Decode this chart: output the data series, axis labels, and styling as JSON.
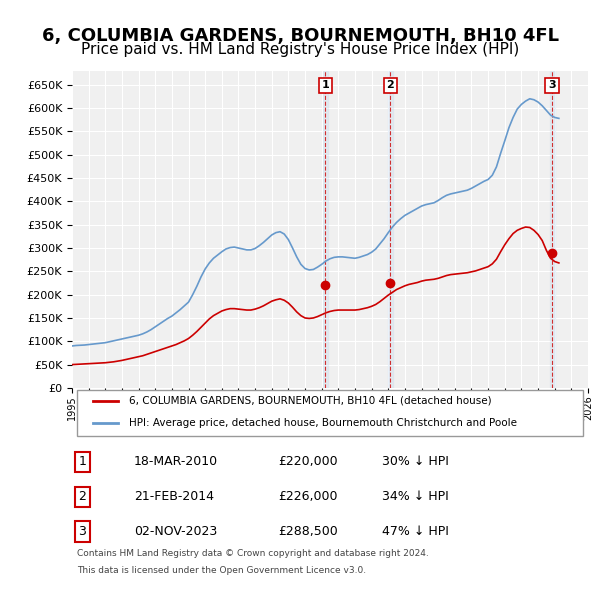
{
  "title": "6, COLUMBIA GARDENS, BOURNEMOUTH, BH10 4FL",
  "subtitle": "Price paid vs. HM Land Registry's House Price Index (HPI)",
  "title_fontsize": 13,
  "subtitle_fontsize": 11,
  "ylabel": "",
  "ylim": [
    0,
    680000
  ],
  "yticks": [
    0,
    50000,
    100000,
    150000,
    200000,
    250000,
    300000,
    350000,
    400000,
    450000,
    500000,
    550000,
    600000,
    650000
  ],
  "xlim_start": 1995,
  "xlim_end": 2026,
  "background_color": "#ffffff",
  "plot_bg_color": "#f0f0f0",
  "grid_color": "#ffffff",
  "hpi_color": "#6699cc",
  "price_color": "#cc0000",
  "legend_hpi_label": "HPI: Average price, detached house, Bournemouth Christchurch and Poole",
  "legend_price_label": "6, COLUMBIA GARDENS, BOURNEMOUTH, BH10 4FL (detached house)",
  "sale_dates": [
    2010.21,
    2014.13,
    2023.84
  ],
  "sale_prices": [
    220000,
    226000,
    288500
  ],
  "sale_labels": [
    "1",
    "2",
    "3"
  ],
  "sale_pct_below": [
    "30%",
    "34%",
    "47%"
  ],
  "sale_display_dates": [
    "18-MAR-2010",
    "21-FEB-2014",
    "02-NOV-2023"
  ],
  "sale_display_prices": [
    "£220,000",
    "£226,000",
    "£288,500"
  ],
  "footer_line1": "Contains HM Land Registry data © Crown copyright and database right 2024.",
  "footer_line2": "This data is licensed under the Open Government Licence v3.0.",
  "hpi_x": [
    1995,
    1995.25,
    1995.5,
    1995.75,
    1996,
    1996.25,
    1996.5,
    1996.75,
    1997,
    1997.25,
    1997.5,
    1997.75,
    1998,
    1998.25,
    1998.5,
    1998.75,
    1999,
    1999.25,
    1999.5,
    1999.75,
    2000,
    2000.25,
    2000.5,
    2000.75,
    2001,
    2001.25,
    2001.5,
    2001.75,
    2002,
    2002.25,
    2002.5,
    2002.75,
    2003,
    2003.25,
    2003.5,
    2003.75,
    2004,
    2004.25,
    2004.5,
    2004.75,
    2005,
    2005.25,
    2005.5,
    2005.75,
    2006,
    2006.25,
    2006.5,
    2006.75,
    2007,
    2007.25,
    2007.5,
    2007.75,
    2008,
    2008.25,
    2008.5,
    2008.75,
    2009,
    2009.25,
    2009.5,
    2009.75,
    2010,
    2010.25,
    2010.5,
    2010.75,
    2011,
    2011.25,
    2011.5,
    2011.75,
    2012,
    2012.25,
    2012.5,
    2012.75,
    2013,
    2013.25,
    2013.5,
    2013.75,
    2014,
    2014.25,
    2014.5,
    2014.75,
    2015,
    2015.25,
    2015.5,
    2015.75,
    2016,
    2016.25,
    2016.5,
    2016.75,
    2017,
    2017.25,
    2017.5,
    2017.75,
    2018,
    2018.25,
    2018.5,
    2018.75,
    2019,
    2019.25,
    2019.5,
    2019.75,
    2020,
    2020.25,
    2020.5,
    2020.75,
    2021,
    2021.25,
    2021.5,
    2021.75,
    2022,
    2022.25,
    2022.5,
    2022.75,
    2023,
    2023.25,
    2023.5,
    2023.75,
    2024,
    2024.25
  ],
  "hpi_y": [
    90000,
    91000,
    91500,
    92000,
    93000,
    94000,
    95000,
    96000,
    97000,
    99000,
    101000,
    103000,
    105000,
    107000,
    109000,
    111000,
    113000,
    116000,
    120000,
    125000,
    131000,
    137000,
    143000,
    149000,
    154000,
    161000,
    168000,
    176000,
    184000,
    200000,
    218000,
    238000,
    255000,
    268000,
    278000,
    285000,
    292000,
    298000,
    301000,
    302000,
    300000,
    298000,
    296000,
    296000,
    299000,
    305000,
    312000,
    320000,
    328000,
    333000,
    335000,
    330000,
    318000,
    300000,
    281000,
    265000,
    256000,
    253000,
    254000,
    259000,
    265000,
    272000,
    277000,
    280000,
    281000,
    281000,
    280000,
    279000,
    278000,
    280000,
    283000,
    286000,
    291000,
    298000,
    309000,
    320000,
    333000,
    345000,
    355000,
    363000,
    370000,
    375000,
    380000,
    385000,
    390000,
    393000,
    395000,
    397000,
    402000,
    408000,
    413000,
    416000,
    418000,
    420000,
    422000,
    424000,
    428000,
    433000,
    438000,
    443000,
    447000,
    456000,
    474000,
    503000,
    530000,
    558000,
    580000,
    598000,
    608000,
    615000,
    620000,
    618000,
    613000,
    605000,
    595000,
    585000,
    580000,
    578000
  ],
  "price_x": [
    1995,
    1995.25,
    1995.5,
    1995.75,
    1996,
    1996.25,
    1996.5,
    1996.75,
    1997,
    1997.25,
    1997.5,
    1997.75,
    1998,
    1998.25,
    1998.5,
    1998.75,
    1999,
    1999.25,
    1999.5,
    1999.75,
    2000,
    2000.25,
    2000.5,
    2000.75,
    2001,
    2001.25,
    2001.5,
    2001.75,
    2002,
    2002.25,
    2002.5,
    2002.75,
    2003,
    2003.25,
    2003.5,
    2003.75,
    2004,
    2004.25,
    2004.5,
    2004.75,
    2005,
    2005.25,
    2005.5,
    2005.75,
    2006,
    2006.25,
    2006.5,
    2006.75,
    2007,
    2007.25,
    2007.5,
    2007.75,
    2008,
    2008.25,
    2008.5,
    2008.75,
    2009,
    2009.25,
    2009.5,
    2009.75,
    2010,
    2010.25,
    2010.5,
    2010.75,
    2011,
    2011.25,
    2011.5,
    2011.75,
    2012,
    2012.25,
    2012.5,
    2012.75,
    2013,
    2013.25,
    2013.5,
    2013.75,
    2014,
    2014.25,
    2014.5,
    2014.75,
    2015,
    2015.25,
    2015.5,
    2015.75,
    2016,
    2016.25,
    2016.5,
    2016.75,
    2017,
    2017.25,
    2017.5,
    2017.75,
    2018,
    2018.25,
    2018.5,
    2018.75,
    2019,
    2019.25,
    2019.5,
    2019.75,
    2020,
    2020.25,
    2020.5,
    2020.75,
    2021,
    2021.25,
    2021.5,
    2021.75,
    2022,
    2022.25,
    2022.5,
    2022.75,
    2023,
    2023.25,
    2023.5,
    2023.75,
    2024,
    2024.25
  ],
  "price_y": [
    50000,
    50500,
    51000,
    51500,
    52000,
    52500,
    53000,
    53500,
    54000,
    55000,
    56000,
    57500,
    59000,
    61000,
    63000,
    65000,
    67000,
    69000,
    72000,
    75000,
    78000,
    81000,
    84000,
    87000,
    90000,
    93000,
    97000,
    101000,
    106000,
    113000,
    121000,
    130000,
    139000,
    148000,
    155000,
    160000,
    165000,
    168000,
    170000,
    170000,
    169000,
    168000,
    167000,
    167000,
    169000,
    172000,
    176000,
    181000,
    186000,
    189000,
    191000,
    188000,
    182000,
    173000,
    163000,
    155000,
    150000,
    149000,
    150000,
    153000,
    157000,
    161000,
    164000,
    166000,
    167000,
    167000,
    167000,
    167000,
    167000,
    168000,
    170000,
    172000,
    175000,
    179000,
    185000,
    192000,
    199000,
    205000,
    211000,
    215000,
    219000,
    222000,
    224000,
    226000,
    229000,
    231000,
    232000,
    233000,
    235000,
    238000,
    241000,
    243000,
    244000,
    245000,
    246000,
    247000,
    249000,
    251000,
    254000,
    257000,
    260000,
    266000,
    276000,
    292000,
    307000,
    320000,
    331000,
    338000,
    342000,
    345000,
    344000,
    338000,
    329000,
    316000,
    295000,
    278000,
    271000,
    268000
  ]
}
